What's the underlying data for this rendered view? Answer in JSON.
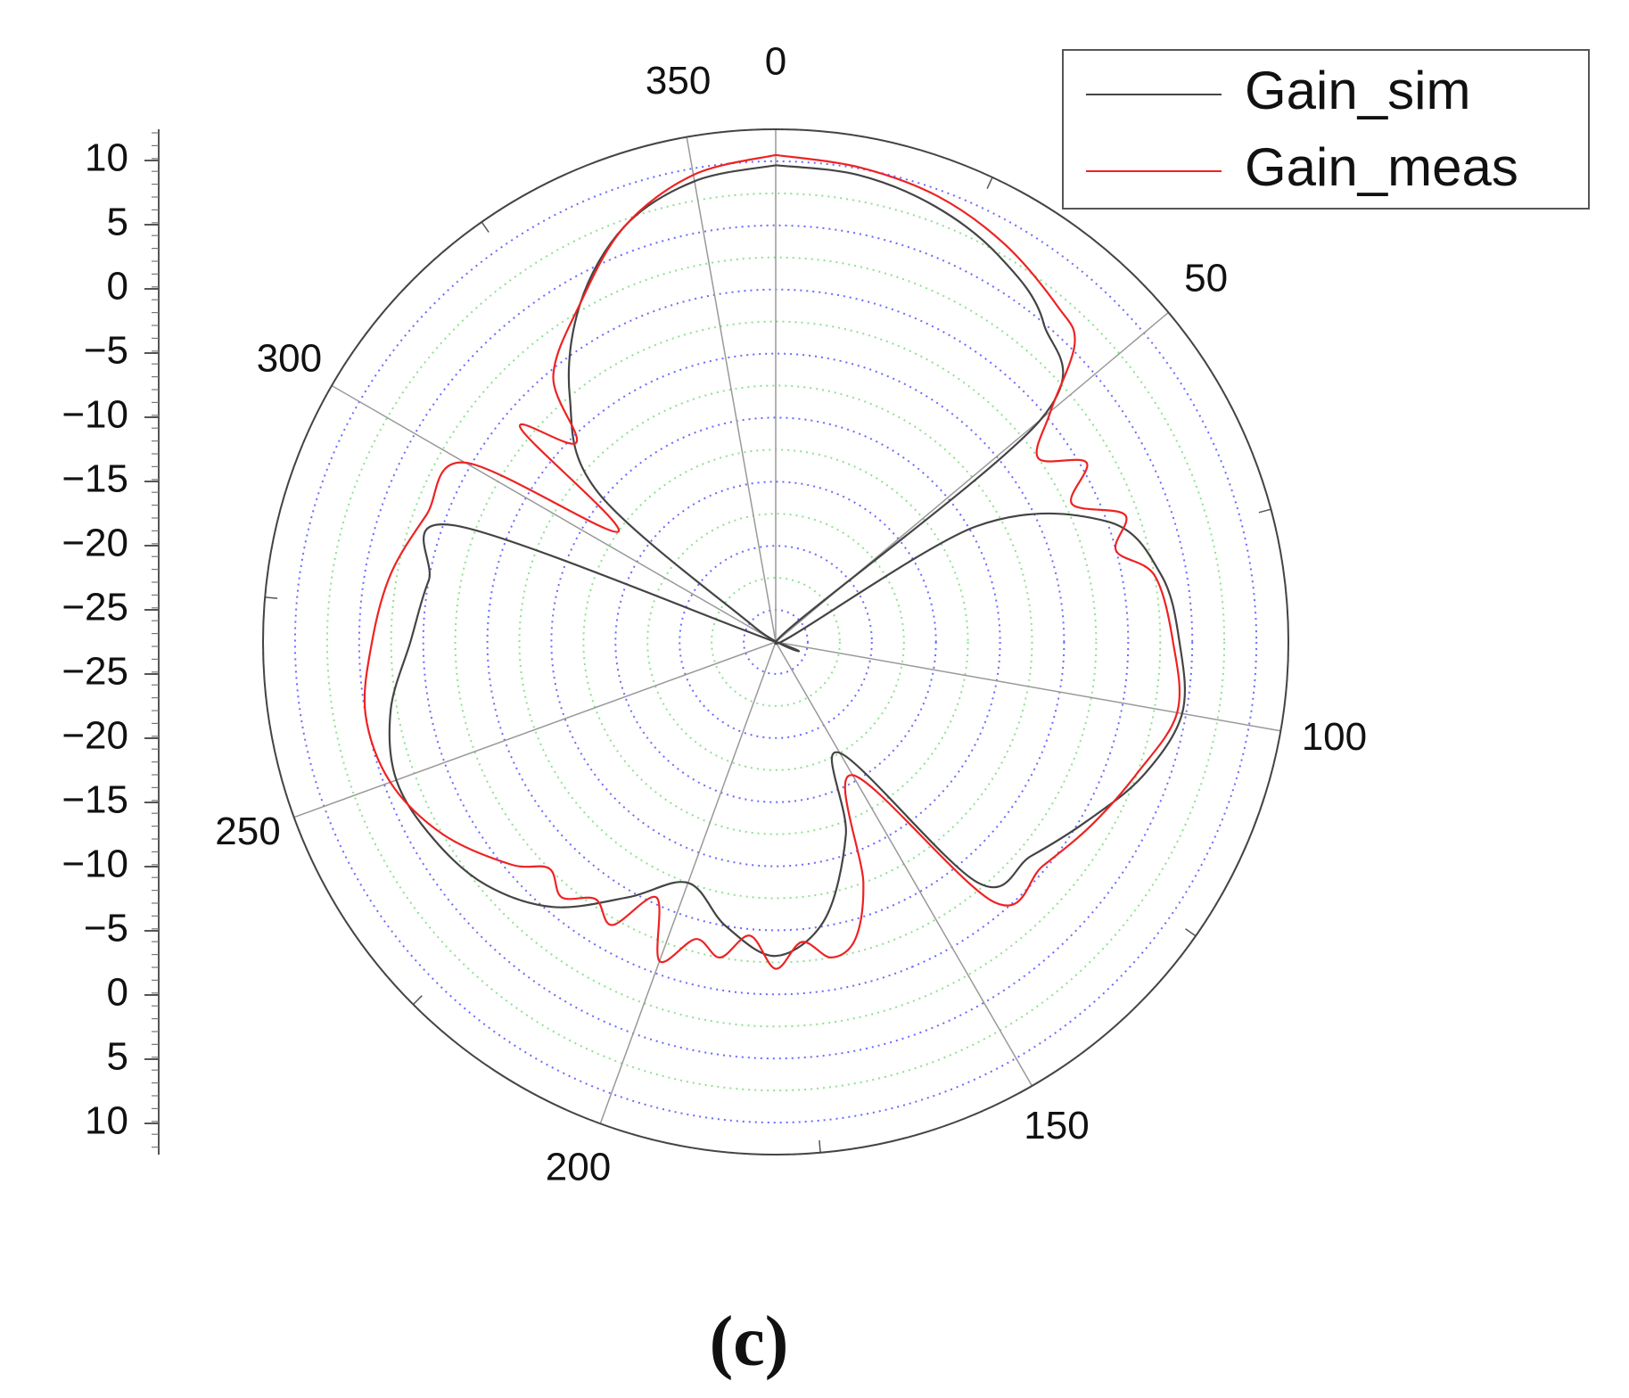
{
  "chart_data": {
    "type": "polar-line",
    "title": "",
    "angle_unit": "degrees",
    "angle_labels": [
      "0",
      "50",
      "100",
      "150",
      "200",
      "250",
      "300",
      "350"
    ],
    "radial_ticks": [
      "10",
      "5",
      "0",
      "−5",
      "−10",
      "−15",
      "−20",
      "−25",
      "−25",
      "−20",
      "−15",
      "−10",
      "−5",
      "0",
      "5",
      "10"
    ],
    "radial_range": [
      -30,
      10
    ],
    "grid": true,
    "legend_position": "top-right",
    "series": [
      {
        "name": "Gain_sim",
        "color": "#444444",
        "angles": [
          0,
          10,
          20,
          30,
          40,
          50,
          55,
          60,
          70,
          80,
          90,
          100,
          110,
          120,
          130,
          140,
          150,
          160,
          170,
          180,
          190,
          200,
          210,
          220,
          230,
          240,
          250,
          260,
          270,
          280,
          290,
          300,
          305,
          310,
          320,
          330,
          340,
          350,
          360
        ],
        "gain_db": [
          7.2,
          7.0,
          6.2,
          4.8,
          2.5,
          -3.0,
          -30.0,
          -12.0,
          -2.5,
          0.5,
          1.5,
          2.2,
          0.5,
          -2.0,
          -4.0,
          -5.5,
          -20.0,
          -14.0,
          -8.0,
          -5.5,
          -7.5,
          -10.0,
          -7.0,
          -3.0,
          -0.5,
          0.8,
          1.5,
          0.5,
          -1.5,
          -2.5,
          -3.5,
          -30.0,
          -28.0,
          -12.0,
          -5.0,
          0.5,
          4.5,
          6.5,
          7.2
        ]
      },
      {
        "name": "Gain_meas",
        "color": "#ee2222",
        "angles": [
          0,
          10,
          20,
          30,
          40,
          45,
          50,
          55,
          60,
          65,
          70,
          75,
          80,
          90,
          100,
          110,
          120,
          130,
          140,
          150,
          160,
          165,
          170,
          175,
          180,
          185,
          190,
          195,
          200,
          205,
          210,
          215,
          220,
          225,
          230,
          240,
          250,
          260,
          270,
          280,
          290,
          300,
          305,
          310,
          315,
          320,
          330,
          340,
          350,
          360
        ],
        "gain_db": [
          8.0,
          7.6,
          7.0,
          5.8,
          4.2,
          3.0,
          -2.0,
          -5.0,
          -2.0,
          -4.5,
          -1.0,
          -2.5,
          0.0,
          1.0,
          1.8,
          0.0,
          -1.5,
          -2.8,
          -3.5,
          -18.0,
          -10.0,
          -6.0,
          -5.0,
          -6.5,
          -4.5,
          -7.0,
          -5.0,
          -6.0,
          -3.5,
          -8.0,
          -4.5,
          -5.5,
          -4.0,
          -5.0,
          -3.0,
          0.0,
          2.0,
          2.5,
          1.5,
          0.5,
          -1.0,
          -2.0,
          -15.0,
          -4.0,
          -8.0,
          -3.0,
          0.5,
          4.5,
          7.0,
          8.0
        ]
      }
    ]
  },
  "caption": "(c)"
}
